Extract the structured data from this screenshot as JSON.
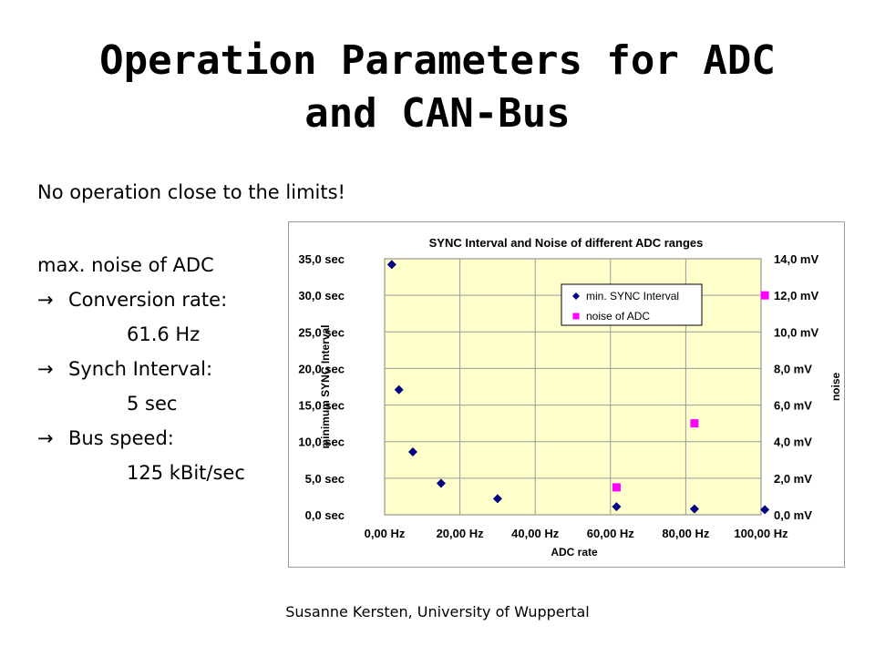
{
  "slide": {
    "title_line1": "Operation Parameters for ADC",
    "title_line2": "and CAN-Bus",
    "intro": "No operation close to the limits!",
    "bullets": {
      "heading": "max. noise of ADC",
      "arrow": "→",
      "conversion_label": "Conversion rate:",
      "conversion_value": "61.6 Hz",
      "synch_label": "Synch Interval:",
      "synch_value": "5 sec",
      "bus_label": "Bus speed:",
      "bus_value": "125 kBit/sec"
    },
    "footer": "Susanne Kersten, University of Wuppertal"
  },
  "chart_data": {
    "type": "scatter",
    "title": "SYNC Interval and Noise of different ADC ranges",
    "xlabel": "ADC rate",
    "ylabel_left": "minimum SYNC Interval",
    "ylabel_right": "noise",
    "xlim": [
      0,
      100
    ],
    "ylim_left": [
      0,
      35
    ],
    "ylim_right": [
      0,
      14
    ],
    "x_ticks": [
      "0,00 Hz",
      "20,00 Hz",
      "40,00 Hz",
      "60,00 Hz",
      "80,00 Hz",
      "100,00 Hz"
    ],
    "y_left_ticks": [
      "0,0 sec",
      "5,0 sec",
      "10,0 sec",
      "15,0 sec",
      "20,0 sec",
      "25,0 sec",
      "30,0 sec",
      "35,0 sec"
    ],
    "y_right_ticks": [
      "0,0 mV",
      "2,0 mV",
      "4,0 mV",
      "6,0 mV",
      "8,0 mV",
      "10,0 mV",
      "12,0 mV",
      "14,0 mV"
    ],
    "grid": true,
    "legend_position": "top-right",
    "plot_background": "#ffffcc",
    "series": [
      {
        "name": "min. SYNC Interval",
        "axis": "left",
        "marker": "diamond",
        "color": "#000080",
        "points": [
          [
            1.9,
            34.2
          ],
          [
            3.8,
            17.1
          ],
          [
            7.5,
            8.6
          ],
          [
            15.0,
            4.3
          ],
          [
            30.0,
            2.2
          ],
          [
            61.6,
            1.1
          ],
          [
            82.3,
            0.8
          ],
          [
            101.0,
            0.7
          ]
        ]
      },
      {
        "name": "noise of ADC",
        "axis": "right",
        "marker": "square",
        "color": "#ff00ff",
        "points": [
          [
            61.6,
            1.5
          ],
          [
            82.3,
            5.0
          ],
          [
            101.0,
            12.0
          ]
        ]
      }
    ]
  }
}
